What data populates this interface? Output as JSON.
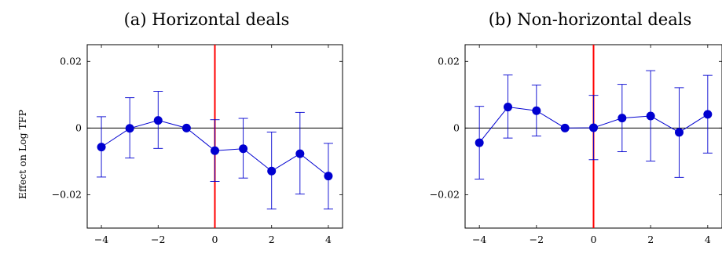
{
  "ylabel": "Effect on Log TFP",
  "colors": {
    "series": "#0000d0",
    "event_line": "#ff0000",
    "zero_line": "#000000",
    "frame": "#000000"
  },
  "chart_data": [
    {
      "type": "scatter",
      "title": "(a) Horizontal deals",
      "xlabel": "",
      "ylabel": "Effect on Log TFP",
      "xlim": [
        -4.5,
        4.5
      ],
      "ylim": [
        -0.03,
        0.025
      ],
      "x_ticks": [
        -4,
        -2,
        0,
        2,
        4
      ],
      "x_tick_labels": [
        "−4",
        "−2",
        "0",
        "2",
        "4"
      ],
      "y_ticks": [
        -0.02,
        0,
        0.02
      ],
      "y_tick_labels": [
        "−0.02",
        "0",
        "0.02"
      ],
      "event_line_x": 0,
      "zero_line_y": 0,
      "grid": false,
      "x": [
        -4,
        -3,
        -2,
        -1,
        0,
        1,
        2,
        3,
        4
      ],
      "values": [
        -0.0057,
        -0.0001,
        0.0023,
        0.0,
        -0.0068,
        -0.0062,
        -0.0129,
        -0.0077,
        -0.0144
      ],
      "ci_low": [
        -0.0147,
        -0.009,
        -0.0061,
        0.0,
        -0.016,
        -0.015,
        -0.0243,
        -0.0198,
        -0.0243
      ],
      "ci_high": [
        0.0034,
        0.0091,
        0.011,
        0.0,
        0.0025,
        0.0029,
        -0.0012,
        0.0047,
        -0.0046
      ]
    },
    {
      "type": "scatter",
      "title": "(b) Non-horizontal deals",
      "xlabel": "",
      "ylabel": "",
      "xlim": [
        -4.5,
        4.5
      ],
      "ylim": [
        -0.03,
        0.025
      ],
      "x_ticks": [
        -4,
        -2,
        0,
        2,
        4
      ],
      "x_tick_labels": [
        "−4",
        "−2",
        "0",
        "2",
        "4"
      ],
      "y_ticks": [
        -0.02,
        0,
        0.02
      ],
      "y_tick_labels": [
        "−0.02",
        "0",
        "0.02"
      ],
      "event_line_x": 0,
      "zero_line_y": 0,
      "grid": false,
      "x": [
        -4,
        -3,
        -2,
        -1,
        0,
        1,
        2,
        3,
        4
      ],
      "values": [
        -0.0044,
        0.0063,
        0.0052,
        0.0,
        0.0001,
        0.003,
        0.0036,
        -0.0013,
        0.0041
      ],
      "ci_low": [
        -0.0153,
        -0.003,
        -0.0024,
        0.0,
        -0.0095,
        -0.0071,
        -0.0099,
        -0.0148,
        -0.0075
      ],
      "ci_high": [
        0.0065,
        0.0159,
        0.0129,
        0.0,
        0.0098,
        0.0131,
        0.0172,
        0.0121,
        0.0158
      ]
    }
  ]
}
